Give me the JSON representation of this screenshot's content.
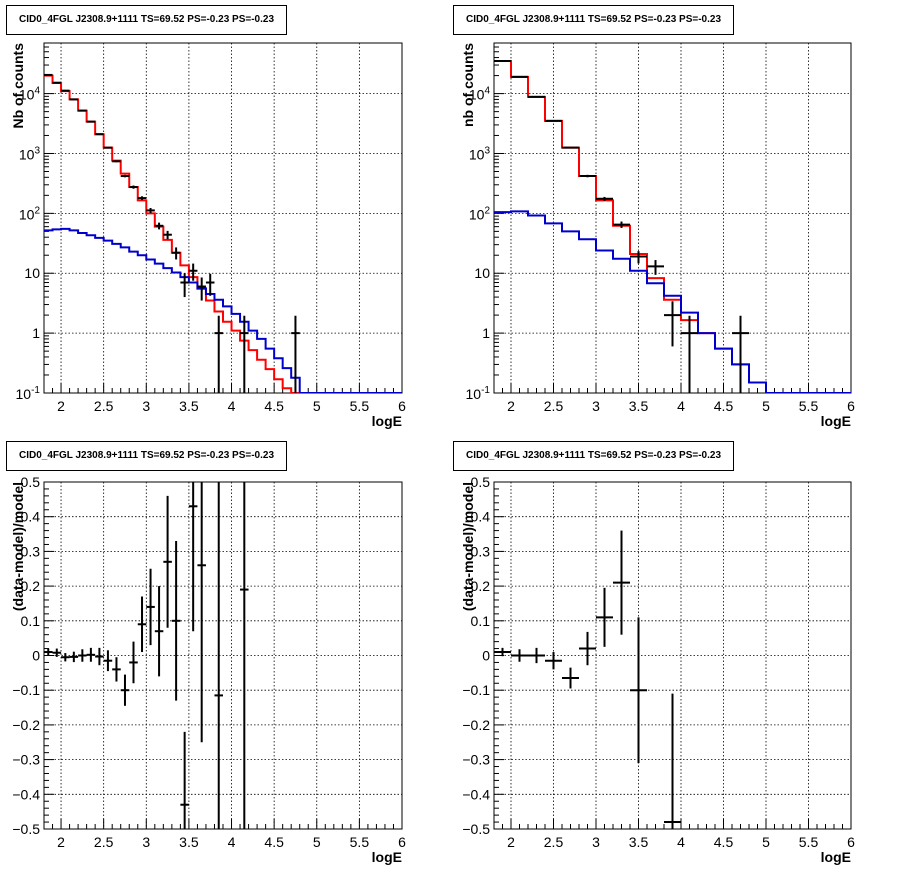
{
  "colors": {
    "data": "#000000",
    "total_model": "#ff0000",
    "background_model": "#0000cc",
    "grid": "#000000"
  },
  "panels": [
    {
      "title": "CID0_4FGL J2308.9+1111 TS=69.52 PS=-0.23 PS=-0.23"
    },
    {
      "title": "CID0_4FGL J2308.9+1111 TS=69.52 PS=-0.23 PS=-0.23"
    },
    {
      "title": "CID0_4FGL J2308.9+1111 TS=69.52 PS=-0.23 PS=-0.23"
    },
    {
      "title": "CID0_4FGL J2308.9+1111 TS=69.52 PS=-0.23 PS=-0.23"
    }
  ],
  "chart_data": [
    {
      "type": "line",
      "xlabel": "logE",
      "ylabel": "Nb of counts",
      "xlim": [
        1.8,
        6
      ],
      "ylim": [
        0.1,
        70000
      ],
      "log_y": true,
      "grid": true,
      "x_ticks": [
        "2",
        "2.5",
        "3",
        "3.5",
        "4",
        "4.5",
        "5",
        "5.5",
        "6"
      ],
      "y_ticks": [
        "10^-1",
        "1",
        "10",
        "10^2",
        "10^3",
        "10^4"
      ],
      "bin_edges": [
        1.8,
        1.9,
        2.0,
        2.1,
        2.2,
        2.3,
        2.4,
        2.5,
        2.6,
        2.7,
        2.8,
        2.9,
        3.0,
        3.1,
        3.2,
        3.3,
        3.4,
        3.5,
        3.6,
        3.7,
        3.8,
        3.9,
        4.0,
        4.1,
        4.2,
        4.3,
        4.4,
        4.5,
        4.6,
        4.7,
        4.8,
        4.9,
        5.0,
        5.1,
        5.2,
        5.3,
        5.4,
        5.5,
        5.6,
        5.7,
        5.8,
        5.9,
        6.0
      ],
      "series": [
        {
          "name": "total model",
          "role": "total_model",
          "values": [
            20000,
            15000,
            11000,
            8000,
            5200,
            3400,
            2100,
            1250,
            760,
            460,
            275,
            165,
            100,
            60,
            36,
            22,
            13.5,
            8.6,
            5.5,
            3.5,
            2.3,
            1.55,
            1.1,
            0.75,
            0.52,
            0.36,
            0.25,
            0.17,
            0.12,
            0.1,
            0.1,
            0.1,
            0.1,
            0.1,
            0.1,
            0.1,
            0.1,
            0.1,
            0.1,
            0.1,
            0.1,
            0.1
          ]
        },
        {
          "name": "background model",
          "role": "background_model",
          "values": [
            52,
            54,
            55,
            52,
            47,
            43,
            39,
            35,
            31,
            27,
            23,
            20,
            17,
            14.5,
            12.2,
            10.3,
            8.6,
            7.0,
            5.6,
            4.5,
            3.6,
            2.8,
            2.1,
            1.55,
            1.1,
            0.8,
            0.55,
            0.38,
            0.26,
            0.18,
            0.1,
            0.1,
            0.1,
            0.1,
            0.1,
            0.1,
            0.1,
            0.1,
            0.1,
            0.1,
            0.1,
            0.1
          ]
        },
        {
          "name": "data",
          "role": "data",
          "points": [
            {
              "x": 1.85,
              "y": 20500,
              "err": 150
            },
            {
              "x": 1.95,
              "y": 15200,
              "err": 120
            },
            {
              "x": 2.05,
              "y": 11200,
              "err": 110
            },
            {
              "x": 2.15,
              "y": 8000,
              "err": 90
            },
            {
              "x": 2.25,
              "y": 5200,
              "err": 72
            },
            {
              "x": 2.35,
              "y": 3400,
              "err": 58
            },
            {
              "x": 2.45,
              "y": 2100,
              "err": 46
            },
            {
              "x": 2.55,
              "y": 1250,
              "err": 35
            },
            {
              "x": 2.65,
              "y": 740,
              "err": 27
            },
            {
              "x": 2.75,
              "y": 420,
              "err": 20
            },
            {
              "x": 2.85,
              "y": 275,
              "err": 17
            },
            {
              "x": 2.95,
              "y": 180,
              "err": 13
            },
            {
              "x": 3.05,
              "y": 112,
              "err": 11
            },
            {
              "x": 3.15,
              "y": 62,
              "err": 8
            },
            {
              "x": 3.25,
              "y": 44,
              "err": 7
            },
            {
              "x": 3.35,
              "y": 22,
              "err": 5
            },
            {
              "x": 3.45,
              "y": 7,
              "err": 3
            },
            {
              "x": 3.55,
              "y": 11,
              "err": 3.5
            },
            {
              "x": 3.65,
              "y": 6,
              "err": 2.5
            },
            {
              "x": 3.75,
              "y": 7,
              "err": 2.8
            },
            {
              "x": 3.85,
              "y": 1,
              "err": 0.95
            },
            {
              "x": 4.15,
              "y": 1,
              "err": 0.95
            },
            {
              "x": 4.75,
              "y": 1,
              "err": 0.95
            }
          ]
        }
      ]
    },
    {
      "type": "line",
      "xlabel": "logE",
      "ylabel": "nb of counts",
      "xlim": [
        1.8,
        6
      ],
      "ylim": [
        0.1,
        70000
      ],
      "log_y": true,
      "grid": true,
      "x_ticks": [
        "2",
        "2.5",
        "3",
        "3.5",
        "4",
        "4.5",
        "5",
        "5.5",
        "6"
      ],
      "y_ticks": [
        "10^-1",
        "1",
        "10",
        "10^2",
        "10^3",
        "10^4"
      ],
      "bin_edges": [
        1.8,
        2.0,
        2.2,
        2.4,
        2.6,
        2.8,
        3.0,
        3.2,
        3.4,
        3.6,
        3.8,
        4.0,
        4.2,
        4.4,
        4.6,
        4.8,
        5.0,
        5.2,
        5.4,
        5.6,
        5.8,
        6.0
      ],
      "series": [
        {
          "name": "total model",
          "role": "total_model",
          "values": [
            35000,
            19000,
            8800,
            3500,
            1250,
            420,
            165,
            62,
            21,
            8.3,
            3.6,
            1.65,
            1.0,
            0.55,
            0.3,
            0.15,
            0.1,
            0.1,
            0.1,
            0.1,
            0.1
          ]
        },
        {
          "name": "background model",
          "role": "background_model",
          "values": [
            105,
            108,
            92,
            68,
            50,
            37,
            24,
            17.5,
            11,
            6.8,
            4.2,
            2.2,
            1.0,
            0.55,
            0.3,
            0.15,
            0.1,
            0.1,
            0.1,
            0.1,
            0.1
          ]
        },
        {
          "name": "data",
          "role": "data",
          "points": [
            {
              "x": 1.9,
              "y": 35000,
              "err": 190
            },
            {
              "x": 2.1,
              "y": 19000,
              "err": 140
            },
            {
              "x": 2.3,
              "y": 8800,
              "err": 94
            },
            {
              "x": 2.5,
              "y": 3500,
              "err": 59
            },
            {
              "x": 2.7,
              "y": 1250,
              "err": 35
            },
            {
              "x": 2.9,
              "y": 420,
              "err": 20
            },
            {
              "x": 3.1,
              "y": 175,
              "err": 13
            },
            {
              "x": 3.3,
              "y": 65,
              "err": 8
            },
            {
              "x": 3.5,
              "y": 19,
              "err": 4.4
            },
            {
              "x": 3.7,
              "y": 13,
              "err": 3.6
            },
            {
              "x": 3.9,
              "y": 2,
              "err": 1.4
            },
            {
              "x": 4.1,
              "y": 1,
              "err": 0.95
            },
            {
              "x": 4.7,
              "y": 1,
              "err": 0.95
            }
          ]
        }
      ]
    },
    {
      "type": "scatter",
      "xlabel": "logE",
      "ylabel": "(data-model)/model",
      "xlim": [
        1.8,
        6
      ],
      "ylim": [
        -0.5,
        0.5
      ],
      "grid": true,
      "x_ticks": [
        "2",
        "2.5",
        "3",
        "3.5",
        "4",
        "4.5",
        "5",
        "5.5",
        "6"
      ],
      "y_ticks": [
        "-0.5",
        "-0.4",
        "-0.3",
        "-0.2",
        "-0.1",
        "0",
        "0.1",
        "0.2",
        "0.3",
        "0.4",
        "0.5"
      ],
      "x_halfwidth": 0.05,
      "points": [
        {
          "x": 1.85,
          "y": 0.01,
          "err": 0.01
        },
        {
          "x": 1.95,
          "y": 0.008,
          "err": 0.012
        },
        {
          "x": 2.05,
          "y": -0.005,
          "err": 0.012
        },
        {
          "x": 2.15,
          "y": -0.004,
          "err": 0.015
        },
        {
          "x": 2.25,
          "y": 0.0,
          "err": 0.018
        },
        {
          "x": 2.35,
          "y": 0.002,
          "err": 0.02
        },
        {
          "x": 2.45,
          "y": -0.003,
          "err": 0.025
        },
        {
          "x": 2.55,
          "y": -0.015,
          "err": 0.03
        },
        {
          "x": 2.65,
          "y": -0.04,
          "err": 0.035
        },
        {
          "x": 2.75,
          "y": -0.1,
          "err": 0.045
        },
        {
          "x": 2.85,
          "y": -0.02,
          "err": 0.06
        },
        {
          "x": 2.95,
          "y": 0.09,
          "err": 0.08
        },
        {
          "x": 3.05,
          "y": 0.14,
          "err": 0.11
        },
        {
          "x": 3.15,
          "y": 0.07,
          "err": 0.13
        },
        {
          "x": 3.25,
          "y": 0.27,
          "err": 0.19
        },
        {
          "x": 3.35,
          "y": 0.1,
          "err": 0.23
        },
        {
          "x": 3.45,
          "y": -0.43,
          "err": 0.21
        },
        {
          "x": 3.55,
          "y": 0.43,
          "err": 0.36
        },
        {
          "x": 3.65,
          "y": 0.26,
          "err": 0.51
        },
        {
          "x": 3.85,
          "y": -0.115,
          "err": 1.0
        },
        {
          "x": 4.15,
          "y": 0.19,
          "err": 1.0
        }
      ]
    },
    {
      "type": "scatter",
      "xlabel": "logE",
      "ylabel": "(data-model)/model",
      "xlim": [
        1.8,
        6
      ],
      "ylim": [
        -0.5,
        0.5
      ],
      "grid": true,
      "x_ticks": [
        "2",
        "2.5",
        "3",
        "3.5",
        "4",
        "4.5",
        "5",
        "5.5",
        "6"
      ],
      "y_ticks": [
        "-0.5",
        "-0.4",
        "-0.3",
        "-0.2",
        "-0.1",
        "0",
        "0.1",
        "0.2",
        "0.3",
        "0.4",
        "0.5"
      ],
      "x_halfwidth": 0.1,
      "points": [
        {
          "x": 1.9,
          "y": 0.01,
          "err": 0.012
        },
        {
          "x": 2.1,
          "y": 0.0,
          "err": 0.018
        },
        {
          "x": 2.3,
          "y": 0.0,
          "err": 0.022
        },
        {
          "x": 2.5,
          "y": -0.015,
          "err": 0.025
        },
        {
          "x": 2.7,
          "y": -0.065,
          "err": 0.03
        },
        {
          "x": 2.9,
          "y": 0.02,
          "err": 0.048
        },
        {
          "x": 3.1,
          "y": 0.11,
          "err": 0.085
        },
        {
          "x": 3.3,
          "y": 0.21,
          "err": 0.15
        },
        {
          "x": 3.5,
          "y": -0.1,
          "err": 0.21
        },
        {
          "x": 3.9,
          "y": -0.48,
          "err": 0.37
        }
      ]
    }
  ]
}
